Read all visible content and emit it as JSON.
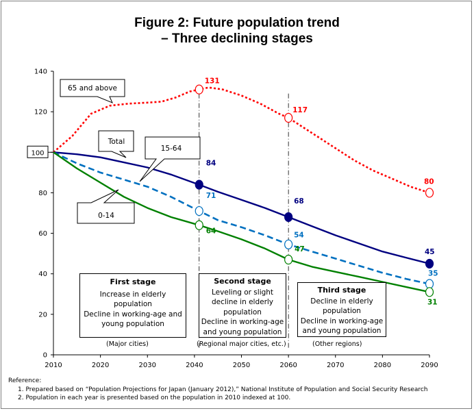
{
  "title_lines": [
    "Figure 2: Future population trend",
    "– Three declining stages"
  ],
  "chart_data": {
    "type": "line",
    "x_ticks": [
      2010,
      2020,
      2030,
      2040,
      2050,
      2060,
      2070,
      2080,
      2090
    ],
    "y_ticks": [
      0,
      20,
      40,
      60,
      80,
      100,
      120,
      140
    ],
    "ylim": [
      0,
      140
    ],
    "xlim": [
      2010,
      2090
    ],
    "index_label": "100",
    "series": [
      {
        "key": "elderly",
        "name": "65 and above",
        "color": "#ff0000",
        "dash": "dotted",
        "x": [
          2010,
          2014,
          2018,
          2022,
          2026,
          2030,
          2033,
          2036,
          2039,
          2041,
          2043,
          2046,
          2050,
          2054,
          2058,
          2060,
          2062,
          2066,
          2070,
          2074,
          2078,
          2082,
          2086,
          2090
        ],
        "y": [
          100,
          108,
          119,
          123,
          124,
          124.5,
          125,
          127,
          130,
          131,
          132,
          131,
          128,
          124,
          119,
          117,
          114,
          108,
          102,
          96,
          91,
          87,
          83,
          80
        ],
        "markers": [
          [
            2041,
            131
          ],
          [
            2060,
            117
          ],
          [
            2090,
            80
          ]
        ],
        "labels": [
          {
            "x": 2041,
            "y": 131,
            "text": "131"
          },
          {
            "x": 2060,
            "y": 117,
            "text": "117"
          },
          {
            "x": 2090,
            "y": 80,
            "text": "80"
          }
        ]
      },
      {
        "key": "total",
        "name": "Total",
        "color": "#000080",
        "dash": "solid",
        "x": [
          2010,
          2015,
          2020,
          2025,
          2030,
          2035,
          2041,
          2045,
          2050,
          2055,
          2060,
          2065,
          2070,
          2075,
          2080,
          2085,
          2090
        ],
        "y": [
          100,
          99,
          97.5,
          95,
          92.5,
          89,
          84,
          80.5,
          76.5,
          72.5,
          68,
          63.5,
          59,
          55,
          51,
          48,
          45
        ],
        "markers": [
          [
            2041,
            84
          ],
          [
            2060,
            68
          ],
          [
            2090,
            45
          ]
        ],
        "labels": [
          {
            "x": 2041,
            "y": 84,
            "text": "84"
          },
          {
            "x": 2060,
            "y": 68,
            "text": "68"
          },
          {
            "x": 2090,
            "y": 45,
            "text": "45"
          }
        ]
      },
      {
        "key": "working",
        "name": "15-64",
        "color": "#0070c0",
        "dash": "dashed",
        "x": [
          2010,
          2015,
          2020,
          2025,
          2030,
          2035,
          2041,
          2045,
          2050,
          2055,
          2060,
          2065,
          2070,
          2075,
          2080,
          2085,
          2090
        ],
        "y": [
          100,
          94.5,
          90,
          86.5,
          83,
          78,
          71,
          66.5,
          63,
          59,
          54.5,
          51,
          47.5,
          44,
          40.5,
          37.5,
          35
        ],
        "markers": [
          [
            2041,
            71
          ],
          [
            2060,
            54.5
          ],
          [
            2090,
            35
          ]
        ],
        "labels": [
          {
            "x": 2041,
            "y": 71,
            "text": "71"
          },
          {
            "x": 2060,
            "y": 54,
            "text": "54"
          },
          {
            "x": 2090,
            "y": 35,
            "text": "35"
          }
        ]
      },
      {
        "key": "young",
        "name": "0-14",
        "color": "#008000",
        "dash": "solid",
        "x": [
          2010,
          2015,
          2020,
          2025,
          2030,
          2035,
          2041,
          2045,
          2050,
          2055,
          2060,
          2065,
          2070,
          2075,
          2080,
          2085,
          2090
        ],
        "y": [
          100,
          92,
          85,
          78,
          72.5,
          68,
          64,
          61,
          57,
          52.5,
          47,
          43.5,
          41,
          38.5,
          36,
          33.5,
          31
        ],
        "markers": [
          [
            2041,
            64
          ],
          [
            2060,
            47
          ],
          [
            2090,
            31
          ]
        ],
        "labels": [
          {
            "x": 2041,
            "y": 64,
            "text": "64"
          },
          {
            "x": 2060,
            "y": 47,
            "text": "47"
          },
          {
            "x": 2090,
            "y": 31,
            "text": "31"
          }
        ]
      }
    ],
    "callouts": {
      "elderly": "65 and above",
      "total": "Total",
      "working": "15-64",
      "young": "0-14"
    }
  },
  "stages": [
    {
      "title": "First stage",
      "lines": [
        "Increase in elderly",
        "population",
        "Decline in working-age and",
        "young population"
      ],
      "region": "(Major cities)"
    },
    {
      "title": "Second stage",
      "lines": [
        "Leveling or slight",
        "decline in elderly",
        "population",
        "Decline in working-age",
        "and young population"
      ],
      "region": "(Regional major cities, etc.)"
    },
    {
      "title": "Third stage",
      "lines": [
        "Decline in elderly",
        "population",
        "Decline in working-age",
        "and young population"
      ],
      "region": "(Other regions)"
    }
  ],
  "reference": {
    "heading": "Reference:",
    "items": [
      "1. Prepared based on “Population Projections for Japan (January 2012),” National Institute of Population and Social Security Research",
      "2. Population in each year is presented based on the population in 2010 indexed at 100."
    ]
  }
}
